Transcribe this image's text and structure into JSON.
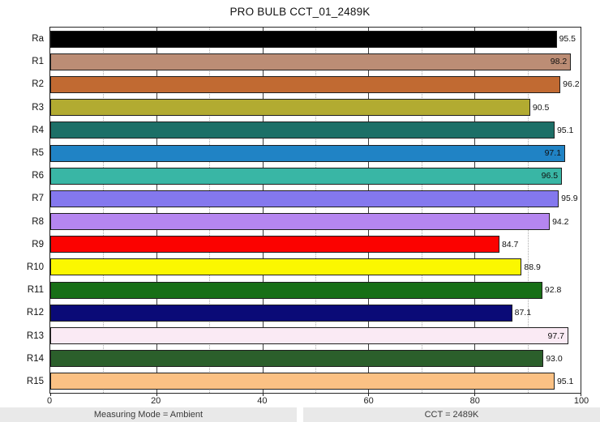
{
  "title": "PRO BULB CCT_01_2489K",
  "chart_data": {
    "type": "bar",
    "orientation": "horizontal",
    "title": "PRO BULB CCT_01_2489K",
    "categories": [
      "Ra",
      "R1",
      "R2",
      "R3",
      "R4",
      "R5",
      "R6",
      "R7",
      "R8",
      "R9",
      "R10",
      "R11",
      "R12",
      "R13",
      "R14",
      "R15"
    ],
    "values": [
      95.5,
      98.2,
      96.2,
      90.5,
      95.1,
      97.1,
      96.5,
      95.9,
      94.2,
      84.7,
      88.9,
      92.8,
      87.1,
      97.7,
      93.0,
      95.1
    ],
    "bar_colors": [
      "#000000",
      "#BC8D75",
      "#C16A32",
      "#B2AB31",
      "#1C6F67",
      "#2083C5",
      "#39B6A5",
      "#8478EE",
      "#B586F0",
      "#FB0200",
      "#FBF700",
      "#176F16",
      "#0A0A77",
      "#FAEAF4",
      "#2B5F2B",
      "#FBC184"
    ],
    "xlabel": "",
    "ylabel": "",
    "xlim": [
      0,
      100
    ],
    "x_major_ticks": [
      0,
      20,
      40,
      60,
      80,
      100
    ],
    "x_minor_ticks": [
      10,
      30,
      50,
      70,
      90
    ],
    "grid": {
      "major": "solid",
      "minor": "dotted"
    },
    "legend": "none",
    "value_labels": true,
    "value_label_decimals": 1,
    "value_label_inside_threshold": 96.4
  },
  "status_bar": {
    "left_label": "Measuring Mode = Ambient",
    "right_label": "CCT = 2489K"
  },
  "colors": {
    "background": "#FFFFFF",
    "frame": "#262626",
    "grid_major": "#3C3C3C",
    "grid_minor": "#ABABAB",
    "bar_border": "#1F1F1F",
    "text": "#111111",
    "status_bar_bg": "#E9E9E9",
    "status_text": "#3A3A3A"
  }
}
